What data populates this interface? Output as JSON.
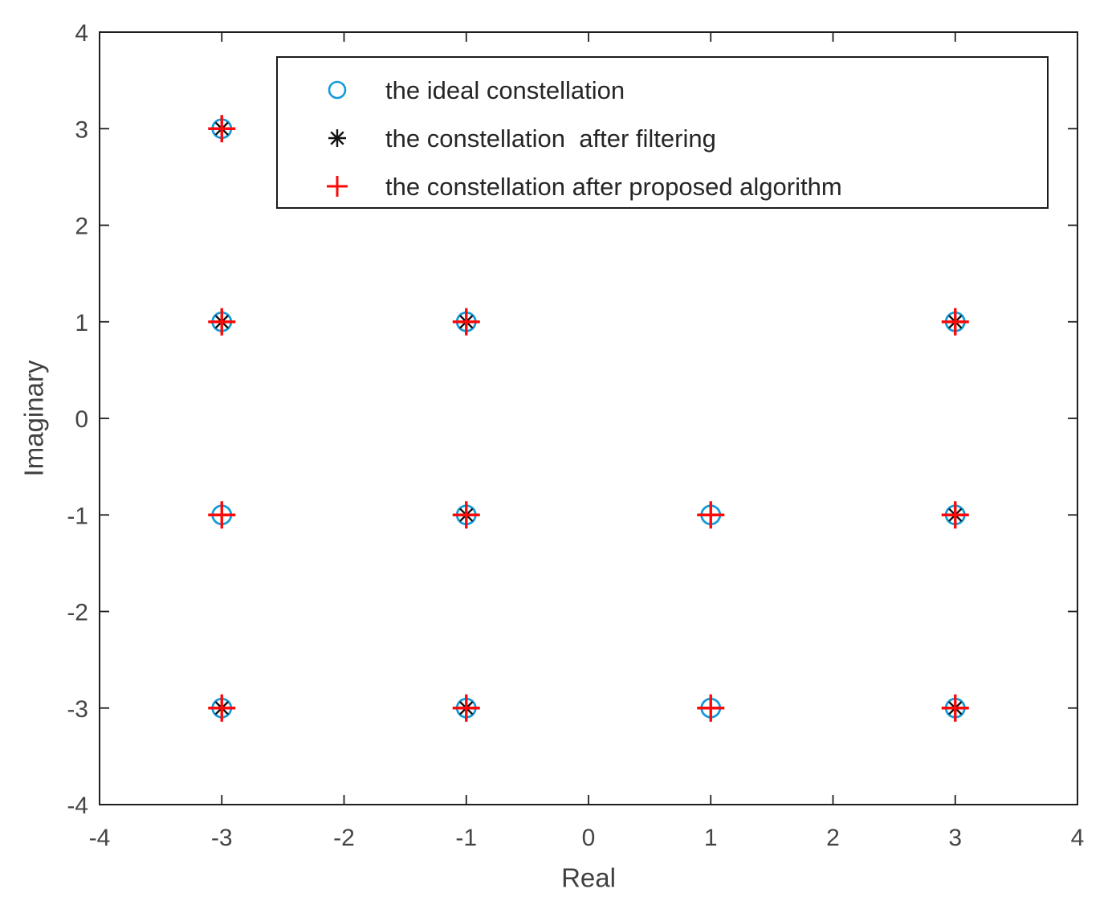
{
  "figure": {
    "background": "#ffffff",
    "axis_color": "#1f1f1f",
    "tick_label_color": "#454545"
  },
  "chart_data": {
    "type": "scatter",
    "title": "",
    "xlabel": "Real",
    "ylabel": "Imaginary",
    "xlim": [
      -4,
      4
    ],
    "ylim": [
      -4,
      4
    ],
    "xticks": [
      -4,
      -3,
      -2,
      -1,
      0,
      1,
      2,
      3,
      4
    ],
    "yticks": [
      -4,
      -3,
      -2,
      -1,
      0,
      1,
      2,
      3,
      4
    ],
    "grid": false,
    "legend_position": "top-inside-boxed",
    "series": [
      {
        "name": "the ideal constellation",
        "marker": "circle",
        "color": "#149ad8",
        "points": [
          [
            -3,
            3
          ],
          [
            -3,
            1
          ],
          [
            -1,
            1
          ],
          [
            3,
            1
          ],
          [
            -3,
            -1
          ],
          [
            -1,
            -1
          ],
          [
            1,
            -1
          ],
          [
            3,
            -1
          ],
          [
            -3,
            -3
          ],
          [
            -1,
            -3
          ],
          [
            1,
            -3
          ],
          [
            3,
            -3
          ]
        ]
      },
      {
        "name": "the constellation  after filtering",
        "marker": "asterisk",
        "color": "#111111",
        "points": [
          [
            -3,
            3
          ],
          [
            -3,
            1
          ],
          [
            -1,
            1
          ],
          [
            3,
            1
          ],
          [
            -1,
            -1
          ],
          [
            3,
            -1
          ],
          [
            -3,
            -3
          ],
          [
            -1,
            -3
          ],
          [
            3,
            -3
          ]
        ]
      },
      {
        "name": "the constellation after proposed algorithm",
        "marker": "plus",
        "color": "#fa0a0a",
        "points": [
          [
            -3,
            3
          ],
          [
            -3,
            1
          ],
          [
            -1,
            1
          ],
          [
            3,
            1
          ],
          [
            -3,
            -1
          ],
          [
            -1,
            -1
          ],
          [
            1,
            -1
          ],
          [
            3,
            -1
          ],
          [
            -3,
            -3
          ],
          [
            -1,
            -3
          ],
          [
            1,
            -3
          ],
          [
            3,
            -3
          ]
        ]
      }
    ]
  }
}
